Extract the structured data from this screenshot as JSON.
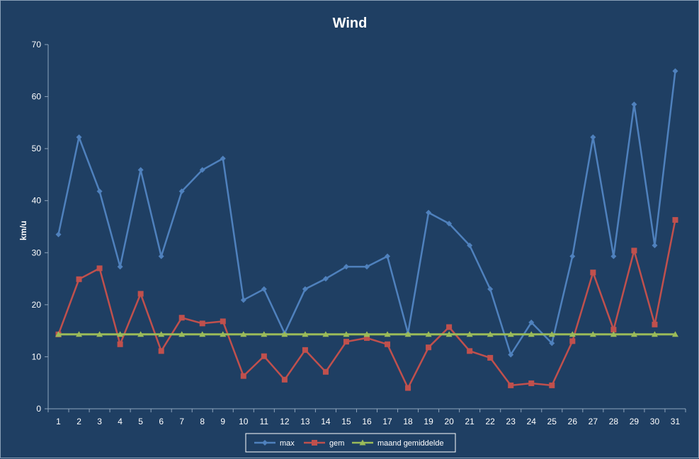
{
  "chart_data": {
    "type": "line",
    "title": "Wind",
    "xlabel": "",
    "ylabel": "km/u",
    "ylim": [
      0,
      70
    ],
    "yticks": [
      0,
      10,
      20,
      30,
      40,
      50,
      60,
      70
    ],
    "grid": false,
    "legend_position": "bottom",
    "categories": [
      "1",
      "2",
      "3",
      "4",
      "5",
      "6",
      "7",
      "8",
      "9",
      "10",
      "11",
      "12",
      "13",
      "14",
      "15",
      "16",
      "17",
      "18",
      "19",
      "20",
      "21",
      "22",
      "23",
      "24",
      "25",
      "26",
      "27",
      "28",
      "29",
      "30",
      "31"
    ],
    "series": [
      {
        "name": "max",
        "color": "#4f81bd",
        "marker": "diamond",
        "values": [
          33.5,
          52.2,
          41.8,
          27.3,
          45.9,
          29.3,
          41.8,
          45.9,
          48.1,
          20.9,
          23.0,
          14.5,
          23.0,
          25.0,
          27.3,
          27.3,
          29.3,
          14.5,
          37.7,
          35.6,
          31.4,
          23.0,
          10.4,
          16.6,
          12.6,
          29.3,
          52.2,
          29.3,
          58.5,
          31.4,
          64.9
        ]
      },
      {
        "name": "gem",
        "color": "#c0504d",
        "marker": "square",
        "values": [
          14.3,
          24.9,
          27.0,
          12.4,
          22.1,
          11.1,
          17.5,
          16.4,
          16.8,
          6.3,
          10.1,
          5.6,
          11.3,
          7.1,
          12.9,
          13.6,
          12.4,
          4.0,
          11.8,
          15.7,
          11.1,
          9.8,
          4.5,
          4.9,
          4.5,
          13.0,
          26.2,
          15.2,
          30.4,
          16.2,
          36.3
        ]
      },
      {
        "name": "maand gemiddelde",
        "color": "#9bbb59",
        "marker": "triangle",
        "values": [
          14.3,
          14.3,
          14.3,
          14.3,
          14.3,
          14.3,
          14.3,
          14.3,
          14.3,
          14.3,
          14.3,
          14.3,
          14.3,
          14.3,
          14.3,
          14.3,
          14.3,
          14.3,
          14.3,
          14.3,
          14.3,
          14.3,
          14.3,
          14.3,
          14.3,
          14.3,
          14.3,
          14.3,
          14.3,
          14.3,
          14.3
        ]
      }
    ]
  }
}
